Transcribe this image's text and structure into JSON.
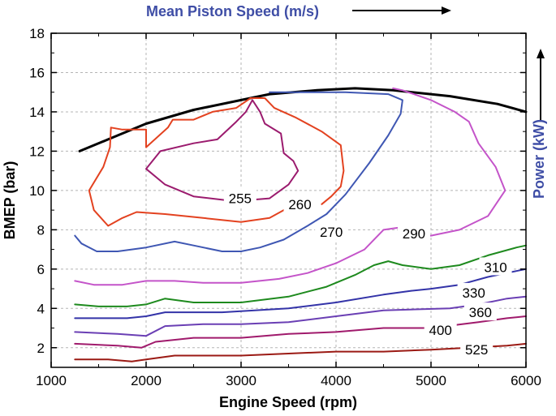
{
  "chart_data": {
    "type": "line",
    "title": "Mean Piston Speed (m/s)",
    "xlabel": "Engine Speed (rpm)",
    "ylabel": "BMEP (bar)",
    "y2label": "Power (kW)",
    "xlim": [
      1000,
      6000
    ],
    "ylim": [
      1,
      18
    ],
    "xticks": [
      1000,
      2000,
      3000,
      4000,
      5000,
      6000
    ],
    "yticks": [
      2,
      4,
      6,
      8,
      10,
      12,
      14,
      16,
      18
    ],
    "grid": true,
    "title_color": "#3f4ea6",
    "series": [
      {
        "name": "max-bmep",
        "label": "",
        "color": "#000000",
        "points": [
          [
            1300,
            12.0
          ],
          [
            1600,
            12.6
          ],
          [
            2000,
            13.4
          ],
          [
            2500,
            14.1
          ],
          [
            3000,
            14.6
          ],
          [
            3300,
            14.9
          ],
          [
            3800,
            15.1
          ],
          [
            4200,
            15.2
          ],
          [
            4600,
            15.1
          ],
          [
            5200,
            14.8
          ],
          [
            5700,
            14.4
          ],
          [
            6000,
            14.0
          ]
        ]
      },
      {
        "name": "bsfc-255",
        "label": "255",
        "color": "#9b1b6e",
        "label_at": [
          2990,
          9.6
        ],
        "points": [
          [
            2850,
            9.5
          ],
          [
            2500,
            9.7
          ],
          [
            2200,
            10.3
          ],
          [
            2000,
            11.1
          ],
          [
            2150,
            12.0
          ],
          [
            2500,
            12.4
          ],
          [
            2750,
            12.6
          ],
          [
            2950,
            13.5
          ],
          [
            3050,
            14.0
          ],
          [
            3120,
            14.6
          ],
          [
            3200,
            14.0
          ],
          [
            3250,
            13.4
          ],
          [
            3420,
            12.9
          ],
          [
            3450,
            11.9
          ],
          [
            3550,
            11.5
          ],
          [
            3600,
            11.0
          ],
          [
            3500,
            10.3
          ],
          [
            3300,
            9.6
          ],
          [
            3050,
            9.5
          ]
        ]
      },
      {
        "name": "bsfc-260",
        "label": "260",
        "color": "#e34220",
        "label_at": [
          3620,
          9.3
        ],
        "points": [
          [
            3450,
            9.0
          ],
          [
            3300,
            8.6
          ],
          [
            3000,
            8.4
          ],
          [
            2600,
            8.6
          ],
          [
            2200,
            8.8
          ],
          [
            1900,
            8.9
          ],
          [
            1750,
            8.6
          ],
          [
            1600,
            8.2
          ],
          [
            1450,
            9.0
          ],
          [
            1400,
            10.0
          ],
          [
            1550,
            11.2
          ],
          [
            1620,
            12.2
          ],
          [
            1630,
            13.2
          ],
          [
            1750,
            13.1
          ],
          [
            2000,
            13.1
          ],
          [
            2000,
            12.2
          ],
          [
            2230,
            13.2
          ],
          [
            2280,
            13.6
          ],
          [
            2500,
            13.6
          ],
          [
            2700,
            14.0
          ],
          [
            2950,
            14.2
          ],
          [
            3100,
            14.7
          ],
          [
            3250,
            14.7
          ],
          [
            3350,
            14.2
          ],
          [
            3580,
            13.7
          ],
          [
            3850,
            13.0
          ],
          [
            4050,
            12.3
          ],
          [
            4080,
            11.0
          ],
          [
            4050,
            10.2
          ],
          [
            3950,
            9.7
          ],
          [
            3850,
            9.3
          ]
        ]
      },
      {
        "name": "bsfc-270",
        "label": "270",
        "color": "#3f57b3",
        "label_at": [
          3950,
          7.9
        ],
        "points": [
          [
            1250,
            7.7
          ],
          [
            1320,
            7.3
          ],
          [
            1480,
            6.9
          ],
          [
            1700,
            6.9
          ],
          [
            2000,
            7.1
          ],
          [
            2300,
            7.4
          ],
          [
            2500,
            7.2
          ],
          [
            2800,
            6.9
          ],
          [
            3000,
            6.9
          ],
          [
            3200,
            7.1
          ],
          [
            3450,
            7.5
          ],
          [
            3700,
            8.2
          ],
          [
            3900,
            8.8
          ],
          [
            4100,
            9.8
          ],
          [
            4350,
            11.4
          ],
          [
            4550,
            12.8
          ],
          [
            4680,
            13.9
          ],
          [
            4700,
            14.6
          ],
          [
            4550,
            14.9
          ],
          [
            4100,
            15.0
          ],
          [
            3600,
            15.0
          ],
          [
            3300,
            15.0
          ]
        ]
      },
      {
        "name": "bsfc-290",
        "label": "290",
        "color": "#c454c9",
        "label_at": [
          4820,
          7.8
        ],
        "points": [
          [
            1250,
            5.4
          ],
          [
            1450,
            5.2
          ],
          [
            1750,
            5.2
          ],
          [
            2000,
            5.4
          ],
          [
            2300,
            5.4
          ],
          [
            2600,
            5.3
          ],
          [
            3000,
            5.3
          ],
          [
            3400,
            5.5
          ],
          [
            3700,
            5.8
          ],
          [
            4000,
            6.3
          ],
          [
            4300,
            7.0
          ],
          [
            4500,
            8.0
          ],
          [
            4650,
            8.1
          ],
          [
            4800,
            7.7
          ],
          [
            5000,
            7.7
          ],
          [
            5300,
            8.0
          ],
          [
            5600,
            8.7
          ],
          [
            5780,
            10.0
          ],
          [
            5680,
            11.2
          ],
          [
            5500,
            12.4
          ],
          [
            5400,
            13.5
          ],
          [
            5250,
            14.0
          ],
          [
            5000,
            14.6
          ],
          [
            4700,
            15.1
          ],
          [
            4600,
            15.2
          ]
        ]
      },
      {
        "name": "bsfc-310",
        "label": "310",
        "color": "#1e8a1e",
        "label_at": [
          5680,
          6.1
        ],
        "points": [
          [
            1250,
            4.2
          ],
          [
            1500,
            4.1
          ],
          [
            1800,
            4.1
          ],
          [
            2000,
            4.2
          ],
          [
            2200,
            4.5
          ],
          [
            2500,
            4.3
          ],
          [
            3000,
            4.3
          ],
          [
            3500,
            4.6
          ],
          [
            3900,
            5.1
          ],
          [
            4200,
            5.7
          ],
          [
            4400,
            6.2
          ],
          [
            4550,
            6.4
          ],
          [
            4700,
            6.2
          ],
          [
            5000,
            6.0
          ],
          [
            5300,
            6.2
          ],
          [
            5600,
            6.7
          ],
          [
            5900,
            7.1
          ],
          [
            6000,
            7.2
          ]
        ]
      },
      {
        "name": "bsfc-330",
        "label": "330",
        "color": "#3333a8",
        "label_at": [
          5450,
          4.8
        ],
        "points": [
          [
            1250,
            3.5
          ],
          [
            1800,
            3.5
          ],
          [
            2000,
            3.6
          ],
          [
            2200,
            3.8
          ],
          [
            2800,
            3.8
          ],
          [
            3500,
            4.0
          ],
          [
            4000,
            4.3
          ],
          [
            4500,
            4.7
          ],
          [
            4800,
            4.9
          ],
          [
            5000,
            5.0
          ],
          [
            5300,
            5.2
          ],
          [
            5600,
            5.6
          ],
          [
            5900,
            5.9
          ],
          [
            6000,
            6.0
          ]
        ]
      },
      {
        "name": "bsfc-360",
        "label": "360",
        "color": "#6a3fb4",
        "label_at": [
          5520,
          3.8
        ],
        "points": [
          [
            1250,
            2.8
          ],
          [
            1700,
            2.7
          ],
          [
            2000,
            2.6
          ],
          [
            2200,
            3.1
          ],
          [
            2600,
            3.2
          ],
          [
            3000,
            3.2
          ],
          [
            3500,
            3.3
          ],
          [
            4000,
            3.6
          ],
          [
            4500,
            3.9
          ],
          [
            5200,
            4.0
          ],
          [
            5500,
            4.2
          ],
          [
            5800,
            4.5
          ],
          [
            6000,
            4.6
          ]
        ]
      },
      {
        "name": "bsfc-400",
        "label": "400",
        "color": "#a01a6c",
        "label_at": [
          5100,
          2.9
        ],
        "points": [
          [
            1250,
            2.2
          ],
          [
            1700,
            2.1
          ],
          [
            1950,
            2.0
          ],
          [
            2100,
            2.3
          ],
          [
            2500,
            2.5
          ],
          [
            3000,
            2.5
          ],
          [
            3500,
            2.7
          ],
          [
            4000,
            2.8
          ],
          [
            4500,
            3.0
          ],
          [
            5000,
            3.0
          ],
          [
            5500,
            3.3
          ],
          [
            5800,
            3.5
          ],
          [
            6000,
            3.6
          ]
        ]
      },
      {
        "name": "bsfc-525",
        "label": "525",
        "color": "#9b1a14",
        "label_at": [
          5480,
          1.9
        ],
        "points": [
          [
            1250,
            1.4
          ],
          [
            1600,
            1.4
          ],
          [
            1850,
            1.3
          ],
          [
            2000,
            1.4
          ],
          [
            2300,
            1.6
          ],
          [
            2700,
            1.6
          ],
          [
            3000,
            1.6
          ],
          [
            3500,
            1.7
          ],
          [
            4000,
            1.8
          ],
          [
            4500,
            1.8
          ],
          [
            5000,
            1.9
          ],
          [
            5400,
            2.0
          ],
          [
            5800,
            2.1
          ],
          [
            6000,
            2.2
          ]
        ]
      }
    ]
  }
}
